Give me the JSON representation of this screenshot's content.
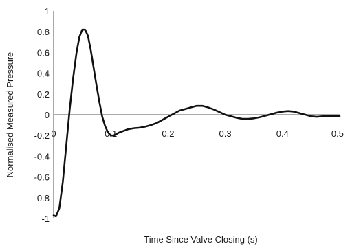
{
  "chart_data": {
    "type": "line",
    "title": "",
    "xlabel": "Time Since Valve Closing (s)",
    "ylabel": "Normalised Measured Pressure",
    "xlim": [
      0,
      0.5
    ],
    "ylim": [
      -1,
      1
    ],
    "xticks": [
      "0",
      "0.1",
      "0.2",
      "0.3",
      "0.4",
      "0.5"
    ],
    "yticks": [
      "1",
      "0.8",
      "0.6",
      "0.4",
      "0.2",
      "0",
      "-0.2",
      "-0.4",
      "-0.6",
      "-0.8",
      "-1"
    ],
    "grid": false,
    "legend": "none",
    "colors": {
      "line": "#111111",
      "axis": "#555555",
      "zero_line": "#555555"
    },
    "series": [
      {
        "x": [
          0,
          0.004,
          0.01,
          0.016,
          0.022,
          0.028,
          0.034,
          0.04,
          0.045,
          0.05,
          0.055,
          0.06,
          0.065,
          0.07,
          0.075,
          0.08,
          0.085,
          0.09,
          0.095,
          0.1,
          0.105,
          0.11,
          0.115,
          0.12,
          0.13,
          0.14,
          0.15,
          0.16,
          0.17,
          0.18,
          0.19,
          0.2,
          0.21,
          0.22,
          0.23,
          0.24,
          0.25,
          0.26,
          0.27,
          0.28,
          0.29,
          0.3,
          0.31,
          0.32,
          0.33,
          0.34,
          0.35,
          0.36,
          0.37,
          0.38,
          0.39,
          0.4,
          0.41,
          0.42,
          0.43,
          0.44,
          0.45,
          0.46,
          0.47,
          0.48,
          0.49,
          0.5
        ],
        "y": [
          -0.97,
          -0.98,
          -0.9,
          -0.65,
          -0.3,
          0.05,
          0.35,
          0.6,
          0.75,
          0.82,
          0.82,
          0.76,
          0.62,
          0.45,
          0.28,
          0.12,
          -0.02,
          -0.11,
          -0.17,
          -0.2,
          -0.2,
          -0.185,
          -0.17,
          -0.16,
          -0.14,
          -0.13,
          -0.125,
          -0.115,
          -0.1,
          -0.08,
          -0.05,
          -0.02,
          0.01,
          0.04,
          0.055,
          0.07,
          0.085,
          0.085,
          0.07,
          0.05,
          0.025,
          0.0,
          -0.015,
          -0.03,
          -0.04,
          -0.04,
          -0.035,
          -0.025,
          -0.01,
          0.005,
          0.02,
          0.03,
          0.035,
          0.03,
          0.015,
          0.0,
          -0.015,
          -0.02,
          -0.015,
          -0.015,
          -0.015,
          -0.015
        ]
      }
    ]
  }
}
